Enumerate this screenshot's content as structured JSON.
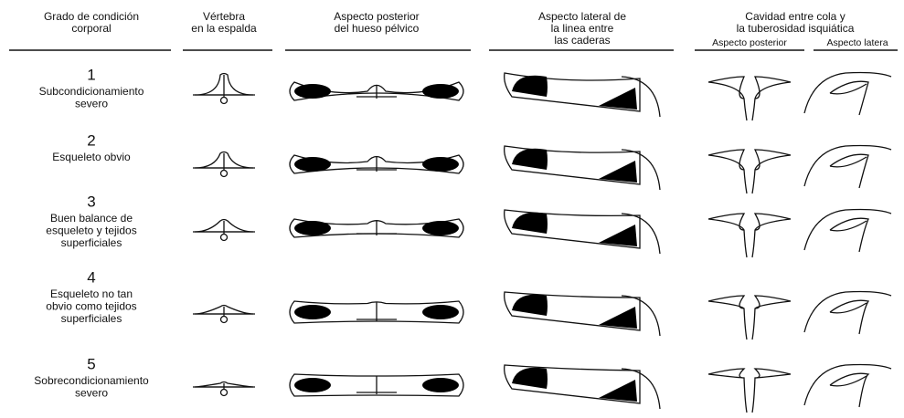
{
  "header": {
    "columns": [
      {
        "lines": [
          "Grado de condición",
          "corporal"
        ]
      },
      {
        "lines": [
          "Vértebra",
          "en la espalda"
        ]
      },
      {
        "lines": [
          "Aspecto posterior",
          "del hueso pélvico"
        ]
      },
      {
        "lines": [
          "Aspecto lateral de",
          "la linea entre",
          "las caderas"
        ]
      },
      {
        "lines": [
          "Cavidad entre cola y",
          "la tuberosidad isquiática"
        ]
      }
    ],
    "subheaders": [
      "Aspecto posterior",
      "Aspecto latera"
    ]
  },
  "rows": [
    {
      "score": "1",
      "lines": [
        "Subcondicionamiento",
        "severo"
      ]
    },
    {
      "score": "2",
      "lines": [
        "Esqueleto obvio"
      ]
    },
    {
      "score": "3",
      "lines": [
        "Buen balance de",
        "esqueleto y tejidos",
        "superficiales"
      ]
    },
    {
      "score": "4",
      "lines": [
        "Esqueleto no tan",
        "obvio como tejidos",
        "superficiales"
      ]
    },
    {
      "score": "5",
      "lines": [
        "Sobrecondicionamiento",
        "severo"
      ]
    }
  ]
}
